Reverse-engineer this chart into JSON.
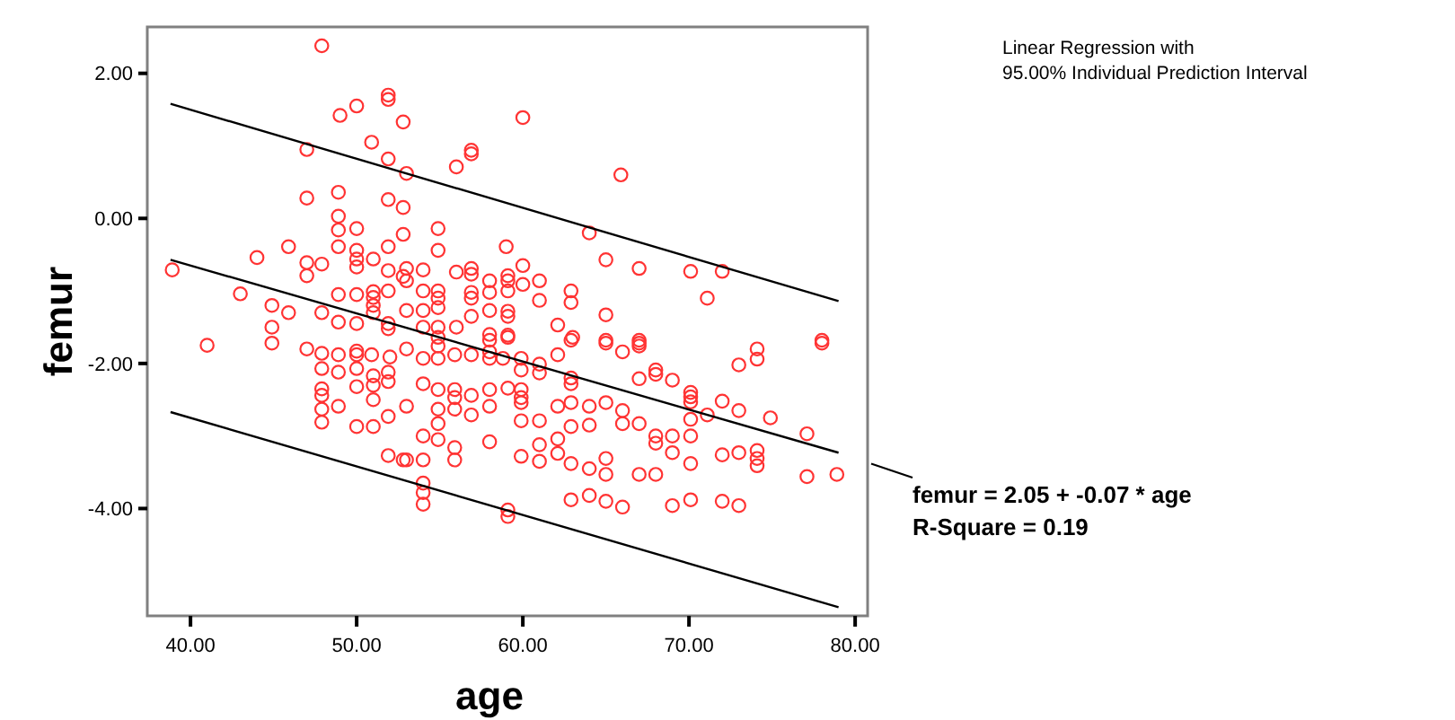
{
  "chart_data": {
    "type": "scatter",
    "xlabel": "age",
    "ylabel": "femur",
    "xlim": [
      37.4,
      80.75
    ],
    "ylim": [
      -5.48,
      2.64
    ],
    "xticks": [
      {
        "value": 40,
        "label": "40.00"
      },
      {
        "value": 50,
        "label": "50.00"
      },
      {
        "value": 60,
        "label": "60.00"
      },
      {
        "value": 70,
        "label": "70.00"
      },
      {
        "value": 80,
        "label": "80.00"
      }
    ],
    "yticks": [
      {
        "value": -4,
        "label": "-4.00"
      },
      {
        "value": -2,
        "label": "-2.00"
      },
      {
        "value": 0,
        "label": "0.00"
      },
      {
        "value": 2,
        "label": "2.00"
      }
    ],
    "grid": false,
    "line_style": "solid",
    "annotations": [
      "Linear Regression with",
      "95.00% Individual Prediction Interval",
      "femur = 2.05 + -0.07 * age",
      "R-Square = 0.19"
    ],
    "series": [
      {
        "marker": "circle",
        "color": "#ff3333",
        "x": [
          47.9,
          51.9,
          51.9,
          50.0,
          49.0,
          52.8,
          50.9,
          47.0,
          51.9,
          48.9,
          47.0,
          51.9,
          52.8,
          48.9,
          48.9,
          50.0,
          52.8,
          45.9,
          48.9,
          50.0,
          51.9,
          44.0,
          47.0,
          47.9,
          50.0,
          50.0,
          51.0,
          38.9,
          51.9,
          47.0,
          52.8,
          43.0,
          48.9,
          50.0,
          51.0,
          51.0,
          51.9,
          44.9,
          45.9,
          47.9,
          51.0,
          51.0,
          44.9,
          48.9,
          50.0,
          51.9,
          51.9,
          41.0,
          44.9,
          47.0,
          47.9,
          48.9,
          50.0,
          50.0,
          50.9,
          52.0,
          47.9,
          48.9,
          50.0,
          51.0,
          51.9,
          51.9,
          47.9,
          47.9,
          50.0,
          51.0,
          47.9,
          48.9,
          51.0,
          51.9,
          47.9,
          50.0,
          51.0,
          51.9,
          52.8,
          60.0,
          56.9,
          56.9,
          56.0,
          65.9,
          53.0,
          54.9,
          54.9,
          59.0,
          64.0,
          65.0,
          67.0,
          60.0,
          53.0,
          54.0,
          56.0,
          56.9,
          56.9,
          58.0,
          59.1,
          59.1,
          60.0,
          61.0,
          53.0,
          54.0,
          54.9,
          54.9,
          56.9,
          56.9,
          58.0,
          59.1,
          61.0,
          62.9,
          62.9,
          53.0,
          54.0,
          54.9,
          56.0,
          56.9,
          58.0,
          59.1,
          59.1,
          62.1,
          65.0,
          54.0,
          54.9,
          58.0,
          59.1,
          63.0,
          65.0,
          67.0,
          70.1,
          72.0,
          71.1,
          78.0,
          54.9,
          54.9,
          58.0,
          59.1,
          59.9,
          61.0,
          62.1,
          62.9,
          65.0,
          66.0,
          67.0,
          67.0,
          53.0,
          54.0,
          54.9,
          55.9,
          56.9,
          58.0,
          58.0,
          58.8,
          59.9,
          61.0,
          62.9,
          62.9,
          67.0,
          54.0,
          54.9,
          55.9,
          55.9,
          56.9,
          58.0,
          59.1,
          59.9,
          59.9,
          62.1,
          62.9,
          64.0,
          65.0,
          66.0,
          67.0,
          66.0,
          53.0,
          54.9,
          55.9,
          56.9,
          58.0,
          59.9,
          59.9,
          61.0,
          62.9,
          64.0,
          54.0,
          54.9,
          54.9,
          55.9,
          58.0,
          61.0,
          62.1,
          53.0,
          54.0,
          55.9,
          59.9,
          61.0,
          62.1,
          62.9,
          64.0,
          65.0,
          65.0,
          67.0,
          54.0,
          54.0,
          54.0,
          59.1,
          59.1,
          62.9,
          64.0,
          65.0,
          66.0,
          78.0,
          74.1,
          74.1,
          73.0,
          68.0,
          68.0,
          69.0,
          70.1,
          70.1,
          70.1,
          72.0,
          73.0,
          71.1,
          74.9,
          70.1,
          68.0,
          68.0,
          69.0,
          70.1,
          77.1,
          69.0,
          72.0,
          73.0,
          74.1,
          74.1,
          74.1,
          70.1,
          68.0,
          77.1,
          78.9,
          69.0,
          70.1,
          72.0,
          73.0
        ],
        "values": [
          2.38,
          1.7,
          1.64,
          1.55,
          1.42,
          1.33,
          1.05,
          0.95,
          0.82,
          0.36,
          0.28,
          0.26,
          0.15,
          0.03,
          -0.16,
          -0.14,
          -0.22,
          -0.39,
          -0.39,
          -0.44,
          -0.39,
          -0.54,
          -0.61,
          -0.63,
          -0.56,
          -0.67,
          -0.56,
          -0.71,
          -0.72,
          -0.79,
          -0.8,
          -1.04,
          -1.05,
          -1.05,
          -1.01,
          -1.09,
          -1.0,
          -1.2,
          -1.3,
          -1.3,
          -1.2,
          -1.3,
          -1.5,
          -1.43,
          -1.45,
          -1.45,
          -1.52,
          -1.75,
          -1.72,
          -1.8,
          -1.86,
          -1.88,
          -1.83,
          -1.88,
          -1.88,
          -1.91,
          -2.07,
          -2.12,
          -2.07,
          -2.17,
          -2.12,
          -2.25,
          -2.35,
          -2.44,
          -2.32,
          -2.3,
          -2.63,
          -2.59,
          -2.5,
          -2.73,
          -2.81,
          -2.87,
          -2.87,
          -3.27,
          -3.33,
          1.39,
          0.94,
          0.89,
          0.71,
          0.6,
          0.62,
          -0.14,
          -0.44,
          -0.39,
          -0.2,
          -0.57,
          -0.69,
          -0.65,
          -0.69,
          -0.71,
          -0.74,
          -0.69,
          -0.77,
          -0.86,
          -0.79,
          -0.86,
          -0.91,
          -0.86,
          -0.86,
          -1.0,
          -1.0,
          -1.1,
          -1.02,
          -1.1,
          -1.02,
          -1.0,
          -1.13,
          -1.0,
          -1.16,
          -1.27,
          -1.27,
          -1.23,
          -1.5,
          -1.35,
          -1.27,
          -1.28,
          -1.35,
          -1.47,
          -1.33,
          -1.5,
          -1.5,
          -1.6,
          -1.61,
          -1.64,
          -1.68,
          -1.68,
          -0.73,
          -0.73,
          -1.1,
          -1.68,
          -1.64,
          -1.76,
          -1.68,
          -1.64,
          -1.93,
          -2.01,
          -1.88,
          -1.68,
          -1.72,
          -1.84,
          -1.72,
          -1.76,
          -1.8,
          -1.93,
          -1.93,
          -1.88,
          -1.88,
          -1.84,
          -1.93,
          -1.93,
          -2.09,
          -2.13,
          -2.2,
          -2.28,
          -2.21,
          -2.28,
          -2.36,
          -2.36,
          -2.47,
          -2.44,
          -2.36,
          -2.34,
          -2.36,
          -2.47,
          -2.59,
          -2.54,
          -2.59,
          -2.54,
          -2.65,
          -2.83,
          -2.83,
          -2.59,
          -2.63,
          -2.63,
          -2.71,
          -2.59,
          -2.54,
          -2.79,
          -2.79,
          -2.87,
          -2.85,
          -3.0,
          -2.83,
          -3.05,
          -3.16,
          -3.08,
          -3.12,
          -3.04,
          -3.33,
          -3.33,
          -3.33,
          -3.28,
          -3.35,
          -3.24,
          -3.38,
          -3.45,
          -3.31,
          -3.53,
          -3.53,
          -3.65,
          -3.78,
          -3.94,
          -4.02,
          -4.11,
          -3.88,
          -3.82,
          -3.9,
          -3.98,
          -1.72,
          -1.8,
          -1.94,
          -2.02,
          -2.09,
          -2.15,
          -2.23,
          -2.4,
          -2.46,
          -2.53,
          -2.52,
          -2.65,
          -2.71,
          -2.75,
          -2.77,
          -3.0,
          -3.1,
          -3.0,
          -3.0,
          -2.97,
          -3.23,
          -3.26,
          -3.23,
          -3.2,
          -3.31,
          -3.41,
          -3.38,
          -3.53,
          -3.56,
          -3.53,
          -3.96,
          -3.88,
          -3.9,
          -3.96
        ]
      },
      {
        "type": "line",
        "marker": "none",
        "color": "#000000",
        "x": [
          38.8,
          79.0
        ],
        "values": [
          -0.57,
          -3.23
        ]
      },
      {
        "type": "line",
        "marker": "none",
        "color": "#000000",
        "x": [
          38.8,
          79.0
        ],
        "values": [
          1.58,
          -1.14
        ]
      },
      {
        "type": "line",
        "marker": "none",
        "color": "#000000",
        "x": [
          38.8,
          79.0
        ],
        "values": [
          -2.67,
          -5.36
        ]
      }
    ]
  }
}
